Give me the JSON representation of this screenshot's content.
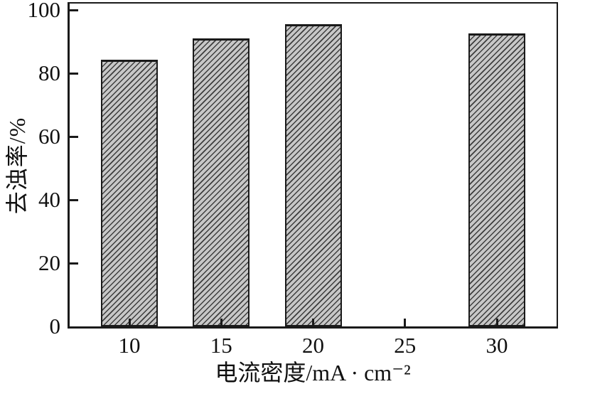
{
  "chart_data": {
    "type": "bar",
    "title": "",
    "categories": [
      "10",
      "15",
      "20",
      "25",
      "30"
    ],
    "values": [
      84.3,
      90.9,
      95.5,
      null,
      92.5
    ],
    "xlabel": "电流密度/mA · cm⁻²",
    "ylabel": "去浊率/%",
    "ylim": [
      0,
      100
    ],
    "yticks": [
      0,
      20,
      40,
      60,
      80,
      100
    ],
    "grid": false,
    "legend": "none",
    "bar_fill_color": "#c7c7c7",
    "bar_hatch": "diagonal-forward",
    "bar_border_color": "#1a1a1a",
    "frame_color": "#1a1a1a",
    "background_color": "#ffffff",
    "text_color": "#111111"
  }
}
